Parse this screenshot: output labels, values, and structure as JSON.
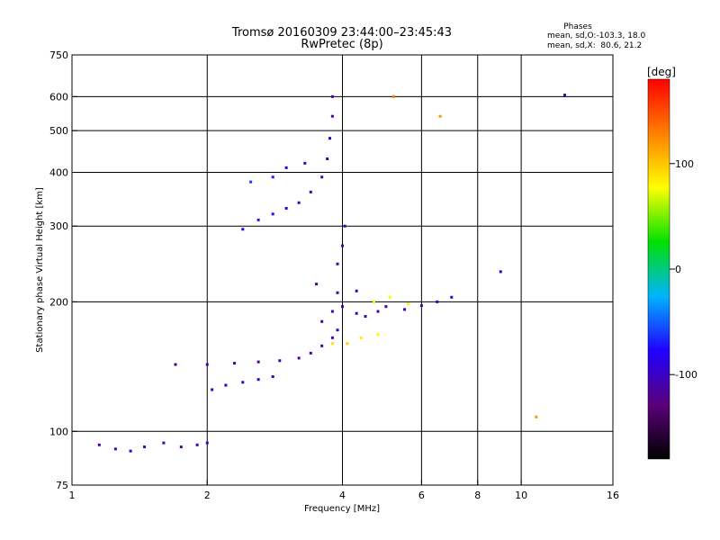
{
  "chart_data": {
    "type": "scatter",
    "title": "Tromsø 20160309 23:44:00–23:45:43",
    "subtitle": "RwPretec (8p)",
    "xlabel": "Frequency [MHz]",
    "ylabel": "Stationary phase Virtual Height [km]",
    "x_scale": "log",
    "y_scale": "log",
    "xlim": [
      1,
      16
    ],
    "ylim": [
      75,
      750
    ],
    "x_ticks": [
      1,
      2,
      4,
      6,
      8,
      10,
      16
    ],
    "y_ticks": [
      75,
      100,
      200,
      300,
      400,
      500,
      600,
      750
    ],
    "x_grid": [
      2,
      4,
      6,
      8,
      10
    ],
    "y_grid": [
      100,
      200,
      300,
      400,
      500,
      600
    ],
    "grid": true,
    "stats": {
      "heading": "Phases",
      "line_o": "mean, sd,O:-103.3, 18.0",
      "line_x": "mean, sd,X:  80.6, 21.2"
    },
    "colorbar": {
      "label": "[deg]",
      "min": -180,
      "max": 180,
      "ticks": [
        100,
        0,
        -100
      ],
      "colors": [
        "#000000",
        "#5a007a",
        "#2000ff",
        "#00b4ff",
        "#00e000",
        "#ffff00",
        "#ff8000",
        "#ff0000"
      ]
    },
    "series": [
      {
        "points": [
          [
            1.15,
            93,
            -110
          ],
          [
            1.25,
            91,
            -100
          ],
          [
            1.35,
            90,
            -90
          ],
          [
            1.45,
            92,
            -105
          ],
          [
            1.6,
            94,
            -110
          ],
          [
            1.75,
            92,
            -115
          ],
          [
            1.9,
            93,
            -110
          ],
          [
            2.0,
            94,
            -105
          ],
          [
            2.05,
            125,
            -100
          ],
          [
            2.2,
            128,
            -105
          ],
          [
            2.4,
            130,
            -95
          ],
          [
            2.6,
            132,
            -100
          ],
          [
            2.8,
            134,
            -110
          ],
          [
            1.7,
            143,
            -120
          ],
          [
            2.0,
            143,
            -115
          ],
          [
            2.3,
            144,
            -110
          ],
          [
            2.6,
            145,
            -115
          ],
          [
            2.9,
            146,
            -105
          ],
          [
            3.2,
            148,
            -110
          ],
          [
            3.4,
            152,
            -115
          ],
          [
            3.6,
            158,
            -105
          ],
          [
            3.8,
            165,
            -110
          ],
          [
            3.9,
            172,
            -100
          ],
          [
            3.8,
            160,
            90
          ],
          [
            4.1,
            160,
            95
          ],
          [
            4.4,
            165,
            85
          ],
          [
            4.8,
            168,
            80
          ],
          [
            3.6,
            180,
            -120
          ],
          [
            3.8,
            190,
            -110
          ],
          [
            4.0,
            195,
            -105
          ],
          [
            4.3,
            188,
            -100
          ],
          [
            4.5,
            185,
            -110
          ],
          [
            4.8,
            190,
            -115
          ],
          [
            5.0,
            195,
            -110
          ],
          [
            5.5,
            192,
            -105
          ],
          [
            6.0,
            196,
            -110
          ],
          [
            6.5,
            200,
            -100
          ],
          [
            7.0,
            205,
            -95
          ],
          [
            4.7,
            200,
            85
          ],
          [
            5.1,
            205,
            80
          ],
          [
            5.6,
            198,
            75
          ],
          [
            3.5,
            220,
            -120
          ],
          [
            3.9,
            210,
            -110
          ],
          [
            4.3,
            212,
            -105
          ],
          [
            3.9,
            245,
            -110
          ],
          [
            4.0,
            270,
            -100
          ],
          [
            4.05,
            300,
            -105
          ],
          [
            2.4,
            295,
            -80
          ],
          [
            2.6,
            310,
            -70
          ],
          [
            2.8,
            320,
            -75
          ],
          [
            3.0,
            330,
            -90
          ],
          [
            3.2,
            340,
            -100
          ],
          [
            3.4,
            360,
            -105
          ],
          [
            3.6,
            390,
            -110
          ],
          [
            3.7,
            430,
            -105
          ],
          [
            3.75,
            480,
            -100
          ],
          [
            3.8,
            540,
            -110
          ],
          [
            3.8,
            600,
            -115
          ],
          [
            2.5,
            380,
            -60
          ],
          [
            2.8,
            390,
            -70
          ],
          [
            3.0,
            410,
            -85
          ],
          [
            3.3,
            420,
            -95
          ],
          [
            9.0,
            235,
            -95
          ],
          [
            12.5,
            605,
            -110
          ],
          [
            10.8,
            108,
            120
          ],
          [
            6.6,
            540,
            120
          ],
          [
            5.2,
            600,
            130
          ]
        ]
      }
    ]
  }
}
